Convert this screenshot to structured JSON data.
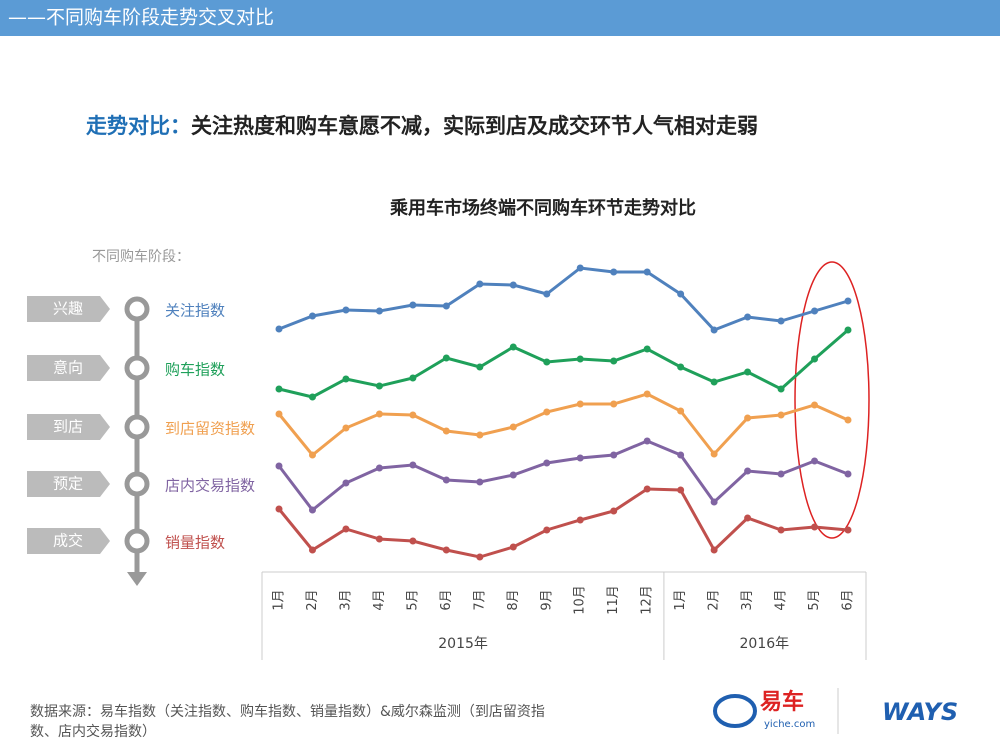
{
  "header": "——不同购车阶段走势交叉对比",
  "headline": {
    "lead": "走势对比：",
    "text": "关注热度和购车意愿不减，实际到店及成交环节人气相对走弱"
  },
  "chart_data": {
    "type": "line",
    "title": "乘用车市场终端不同购车环节走势对比",
    "legend_title": "不同购车阶段：",
    "groups": [
      {
        "name": "2015年",
        "categories": [
          "1月",
          "2月",
          "3月",
          "4月",
          "5月",
          "6月",
          "7月",
          "8月",
          "9月",
          "10月",
          "11月",
          "12月"
        ]
      },
      {
        "name": "2016年",
        "categories": [
          "1月",
          "2月",
          "3月",
          "4月",
          "5月",
          "6月"
        ]
      }
    ],
    "series": [
      {
        "stage": "兴趣",
        "name": "关注指数",
        "color": "#4f81bd",
        "values": [
          271,
          284,
          290,
          289,
          295,
          294,
          316,
          315,
          306,
          332,
          328,
          328,
          306,
          270,
          283,
          279,
          289,
          299
        ]
      },
      {
        "stage": "意向",
        "name": "购车指数",
        "color": "#1fa05a",
        "values": [
          211,
          203,
          221,
          214,
          222,
          242,
          233,
          253,
          238,
          241,
          239,
          251,
          233,
          218,
          228,
          211,
          241,
          270
        ]
      },
      {
        "stage": "到店",
        "name": "到店留资指数",
        "color": "#f0a050",
        "values": [
          186,
          145,
          172,
          186,
          185,
          169,
          165,
          173,
          188,
          196,
          196,
          206,
          189,
          146,
          182,
          185,
          195,
          180
        ]
      },
      {
        "stage": "预定",
        "name": "店内交易指数",
        "color": "#8064a2",
        "values": [
          134,
          90,
          117,
          132,
          135,
          120,
          118,
          125,
          137,
          142,
          145,
          159,
          145,
          98,
          129,
          126,
          139,
          126
        ]
      },
      {
        "stage": "成交",
        "name": "销量指数",
        "color": "#c0504d",
        "values": [
          91,
          50,
          71,
          61,
          59,
          50,
          43,
          53,
          70,
          80,
          89,
          111,
          110,
          50,
          82,
          70,
          73,
          70
        ]
      }
    ]
  },
  "source": "数据来源：易车指数（关注指数、购车指数、销量指数）&威尔森监测（到店留资指数、店内交易指数）",
  "logos": {
    "yiche": "易车",
    "yiche_url": "yiche.com",
    "ways": "WAYS"
  }
}
